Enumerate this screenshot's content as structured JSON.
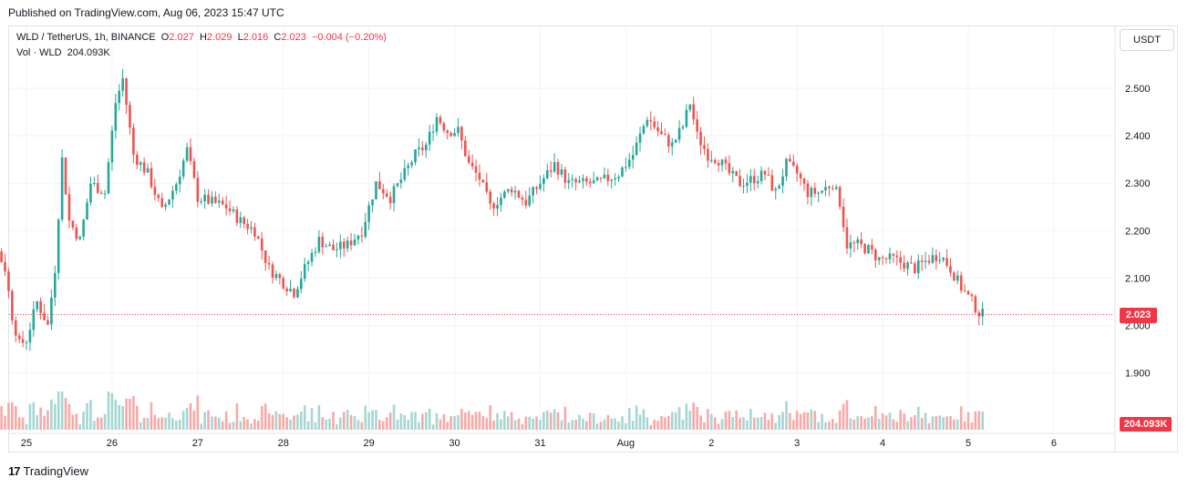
{
  "published": "Published on TradingView.com, Aug 06, 2023 15:47 UTC",
  "legend": {
    "symbol": "WLD / TetherUS, 1h, BINANCE",
    "open_label": "O",
    "open": "2.027",
    "high_label": "H",
    "high": "2.029",
    "low_label": "L",
    "low": "2.016",
    "close_label": "C",
    "close": "2.023",
    "change": "−0.004 (−0.20%)",
    "volume_label": "Vol · WLD",
    "volume": "204.093K"
  },
  "currency_button": "USDT",
  "last_price_tag": "2.023",
  "last_volume_tag": "204.093K",
  "brand": "TradingView",
  "colors": {
    "up": "#26a69a",
    "down": "#ef5350",
    "grid": "#f0f3fa",
    "price_line": "#f23645"
  },
  "chart_data": {
    "type": "candlestick",
    "title": "",
    "y_axis_side": "right",
    "y_ticks": [
      "1.900",
      "2.000",
      "2.100",
      "2.200",
      "2.300",
      "2.400",
      "2.500"
    ],
    "ylim": [
      1.85,
      2.6
    ],
    "x_ticks": [
      "25",
      "26",
      "27",
      "28",
      "29",
      "30",
      "31",
      "Aug",
      "2",
      "3",
      "4",
      "5",
      "6"
    ],
    "x_range_hours": [
      -18,
      280
    ],
    "last_price": 2.023,
    "close_path": [
      [
        -18,
        2.23
      ],
      [
        -14,
        2.1
      ],
      [
        -10,
        2.19
      ],
      [
        -6,
        2.12
      ],
      [
        -4,
        2.02
      ],
      [
        -2,
        1.96
      ],
      [
        0,
        1.97
      ],
      [
        3,
        2.05
      ],
      [
        6,
        2.0
      ],
      [
        8,
        2.12
      ],
      [
        10,
        2.35
      ],
      [
        12,
        2.22
      ],
      [
        15,
        2.18
      ],
      [
        18,
        2.3
      ],
      [
        22,
        2.28
      ],
      [
        25,
        2.47
      ],
      [
        27,
        2.52
      ],
      [
        30,
        2.36
      ],
      [
        34,
        2.32
      ],
      [
        38,
        2.24
      ],
      [
        42,
        2.3
      ],
      [
        45,
        2.37
      ],
      [
        48,
        2.27
      ],
      [
        52,
        2.26
      ],
      [
        56,
        2.25
      ],
      [
        60,
        2.22
      ],
      [
        64,
        2.2
      ],
      [
        68,
        2.12
      ],
      [
        72,
        2.09
      ],
      [
        75,
        2.07
      ],
      [
        78,
        2.12
      ],
      [
        82,
        2.18
      ],
      [
        86,
        2.16
      ],
      [
        90,
        2.17
      ],
      [
        94,
        2.2
      ],
      [
        98,
        2.3
      ],
      [
        102,
        2.27
      ],
      [
        106,
        2.32
      ],
      [
        109,
        2.36
      ],
      [
        112,
        2.38
      ],
      [
        115,
        2.44
      ],
      [
        118,
        2.41
      ],
      [
        121,
        2.41
      ],
      [
        124,
        2.34
      ],
      [
        127,
        2.31
      ],
      [
        130,
        2.25
      ],
      [
        133,
        2.27
      ],
      [
        136,
        2.29
      ],
      [
        140,
        2.26
      ],
      [
        144,
        2.3
      ],
      [
        148,
        2.34
      ],
      [
        152,
        2.3
      ],
      [
        156,
        2.3
      ],
      [
        160,
        2.3
      ],
      [
        163,
        2.31
      ],
      [
        166,
        2.32
      ],
      [
        170,
        2.36
      ],
      [
        174,
        2.44
      ],
      [
        178,
        2.4
      ],
      [
        181,
        2.38
      ],
      [
        184,
        2.42
      ],
      [
        186,
        2.47
      ],
      [
        188,
        2.4
      ],
      [
        191,
        2.36
      ],
      [
        194,
        2.35
      ],
      [
        197,
        2.32
      ],
      [
        200,
        2.3
      ],
      [
        204,
        2.31
      ],
      [
        207,
        2.32
      ],
      [
        210,
        2.28
      ],
      [
        213,
        2.34
      ],
      [
        216,
        2.32
      ],
      [
        219,
        2.28
      ],
      [
        222,
        2.28
      ],
      [
        226,
        2.3
      ],
      [
        228,
        2.26
      ],
      [
        230,
        2.17
      ],
      [
        233,
        2.17
      ],
      [
        236,
        2.16
      ],
      [
        239,
        2.14
      ],
      [
        243,
        2.14
      ],
      [
        246,
        2.13
      ],
      [
        249,
        2.12
      ],
      [
        253,
        2.14
      ],
      [
        256,
        2.15
      ],
      [
        259,
        2.12
      ],
      [
        262,
        2.08
      ],
      [
        265,
        2.05
      ],
      [
        267,
        2.027
      ],
      [
        268,
        2.023
      ]
    ]
  }
}
